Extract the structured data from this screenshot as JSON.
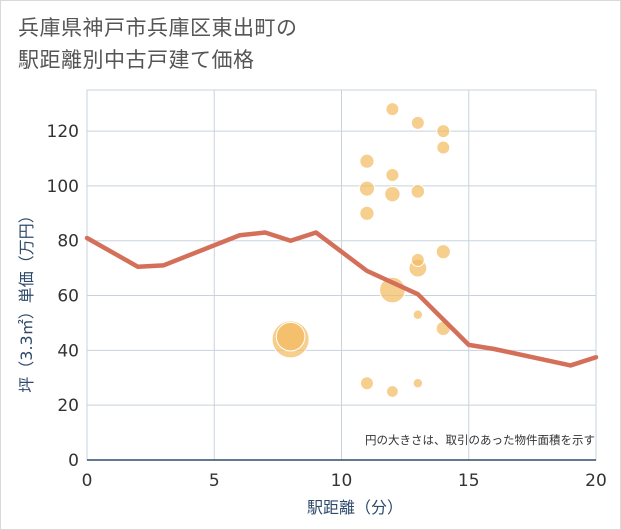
{
  "title_lines": [
    "兵庫県神戸市兵庫区東出町の",
    "駅距離別中古戸建て価格"
  ],
  "colors": {
    "line": "#d4705a",
    "bubble": "#f2bb61",
    "grid": "#c8d3de",
    "axis": "#2e4a6b"
  },
  "chart_data": {
    "type": "scatter",
    "xlabel": "駅距離（分）",
    "ylabel": "坪（3.3㎡）単価（万円）",
    "xlim": [
      0,
      20
    ],
    "ylim": [
      0,
      135
    ],
    "xticks": [
      0,
      5,
      10,
      15,
      20
    ],
    "yticks": [
      0,
      20,
      40,
      60,
      80,
      100,
      120
    ],
    "grid": true,
    "note": "円の大きさは、取引のあった物件面積を示す",
    "line": {
      "x": [
        0,
        2,
        3,
        6,
        7,
        8,
        9,
        11,
        13,
        15,
        16,
        19,
        20
      ],
      "y": [
        81,
        70.5,
        71,
        82,
        83,
        80,
        83,
        69,
        60.5,
        42,
        40.5,
        34.5,
        37.5
      ]
    },
    "bubbles": [
      {
        "x": 8,
        "y": 44,
        "size": 1.0
      },
      {
        "x": 8,
        "y": 45,
        "size": 0.72
      },
      {
        "x": 11,
        "y": 28,
        "size": 0.2
      },
      {
        "x": 11,
        "y": 90,
        "size": 0.24
      },
      {
        "x": 11,
        "y": 99,
        "size": 0.27
      },
      {
        "x": 11,
        "y": 109,
        "size": 0.24
      },
      {
        "x": 12,
        "y": 25,
        "size": 0.16
      },
      {
        "x": 12,
        "y": 62,
        "size": 0.62
      },
      {
        "x": 12,
        "y": 97,
        "size": 0.28
      },
      {
        "x": 12,
        "y": 104,
        "size": 0.2
      },
      {
        "x": 12,
        "y": 128,
        "size": 0.2
      },
      {
        "x": 13,
        "y": 28,
        "size": 0.08
      },
      {
        "x": 13,
        "y": 53,
        "size": 0.08
      },
      {
        "x": 13,
        "y": 70,
        "size": 0.36
      },
      {
        "x": 13,
        "y": 73,
        "size": 0.2
      },
      {
        "x": 13,
        "y": 98,
        "size": 0.22
      },
      {
        "x": 13,
        "y": 123,
        "size": 0.2
      },
      {
        "x": 14,
        "y": 48,
        "size": 0.24
      },
      {
        "x": 14,
        "y": 76,
        "size": 0.24
      },
      {
        "x": 14,
        "y": 114,
        "size": 0.2
      },
      {
        "x": 14,
        "y": 120,
        "size": 0.2
      }
    ]
  }
}
